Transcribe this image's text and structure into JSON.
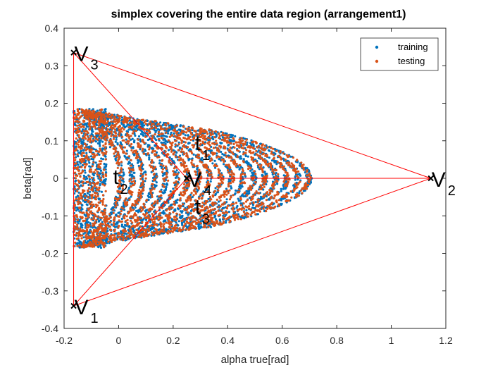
{
  "chart_data": {
    "type": "scatter",
    "title": "simplex covering the entire data region (arrangement1)",
    "xlabel": "alpha true[rad]",
    "ylabel": "beta[rad]",
    "xlim": [
      -0.2,
      1.2
    ],
    "ylim": [
      -0.4,
      0.4
    ],
    "xticks": [
      -0.2,
      0,
      0.2,
      0.4,
      0.6,
      0.8,
      1,
      1.2
    ],
    "xtick_labels": [
      "-0.2",
      "0",
      "0.2",
      "0.4",
      "0.6",
      "0.8",
      "1",
      "1.2"
    ],
    "yticks": [
      -0.4,
      -0.3,
      -0.2,
      -0.1,
      0,
      0.1,
      0.2,
      0.3,
      0.4
    ],
    "ytick_labels": [
      "-0.4",
      "-0.3",
      "-0.2",
      "-0.1",
      "0",
      "0.1",
      "0.2",
      "0.3",
      "0.4"
    ],
    "grid": false,
    "legend_position": "top-right",
    "series": [
      {
        "name": "training",
        "color": "#0072BD"
      },
      {
        "name": "testing",
        "color": "#D95319"
      }
    ],
    "simplex_color": "#FF0000",
    "vertices": [
      {
        "label": "V",
        "sub": "1",
        "x": -0.165,
        "y": -0.34
      },
      {
        "label": "V",
        "sub": "2",
        "x": 1.145,
        "y": 0.0
      },
      {
        "label": "V",
        "sub": "3",
        "x": -0.165,
        "y": 0.335
      },
      {
        "label": "V",
        "sub": "4",
        "x": 0.25,
        "y": 0.0
      }
    ],
    "region_labels": [
      {
        "label": "t",
        "sub": "1",
        "x": 0.29,
        "y": 0.09
      },
      {
        "label": "t",
        "sub": "2",
        "x": -0.01,
        "y": 0.0
      },
      {
        "label": "t",
        "sub": "3",
        "x": 0.29,
        "y": -0.08
      }
    ]
  }
}
